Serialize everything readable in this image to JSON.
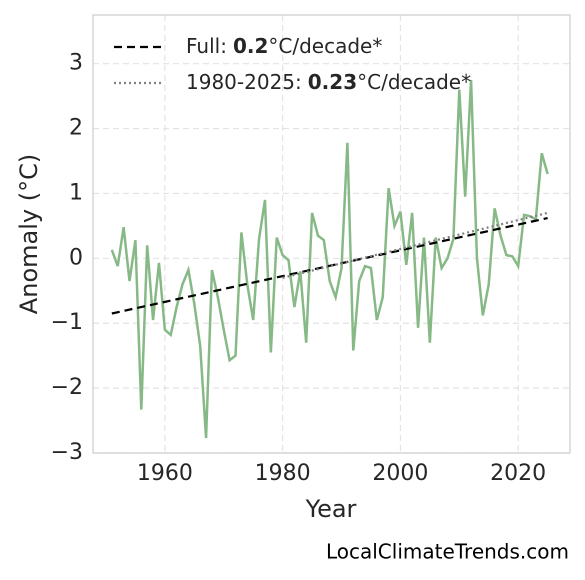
{
  "chart_data": {
    "type": "line",
    "x": [
      1951,
      1952,
      1953,
      1954,
      1955,
      1956,
      1957,
      1958,
      1959,
      1960,
      1961,
      1962,
      1963,
      1964,
      1965,
      1966,
      1967,
      1968,
      1969,
      1970,
      1971,
      1972,
      1973,
      1974,
      1975,
      1976,
      1977,
      1978,
      1979,
      1980,
      1981,
      1982,
      1983,
      1984,
      1985,
      1986,
      1987,
      1988,
      1989,
      1990,
      1991,
      1992,
      1993,
      1994,
      1995,
      1996,
      1997,
      1998,
      1999,
      2000,
      2001,
      2002,
      2003,
      2004,
      2005,
      2006,
      2007,
      2008,
      2009,
      2010,
      2011,
      2012,
      2013,
      2014,
      2015,
      2016,
      2017,
      2018,
      2019,
      2020,
      2021,
      2022,
      2023,
      2024,
      2025
    ],
    "series": [
      {
        "color": "#87b986",
        "values": [
          0.13,
          -0.12,
          0.48,
          -0.35,
          0.28,
          -2.33,
          0.2,
          -0.95,
          -0.07,
          -1.1,
          -1.18,
          -0.75,
          -0.4,
          -0.18,
          -0.7,
          -1.35,
          -2.77,
          -0.18,
          -0.6,
          -1.1,
          -1.57,
          -1.5,
          0.4,
          -0.4,
          -0.95,
          0.3,
          0.9,
          -1.45,
          0.32,
          0.05,
          -0.03,
          -0.75,
          -0.2,
          -1.3,
          0.7,
          0.35,
          0.28,
          -0.35,
          -0.6,
          -0.15,
          1.78,
          -1.42,
          -0.35,
          -0.12,
          -0.15,
          -0.95,
          -0.6,
          1.08,
          0.5,
          0.72,
          -0.1,
          0.7,
          -1.07,
          0.32,
          -1.3,
          0.32,
          -0.15,
          0.0,
          0.3,
          2.6,
          0.95,
          2.75,
          0.0,
          -0.88,
          -0.4,
          0.77,
          0.35,
          0.05,
          0.03,
          -0.12,
          0.67,
          0.65,
          0.6,
          1.62,
          1.3
        ]
      }
    ],
    "trends": [
      {
        "name": "Full:",
        "slope": 0.2,
        "unit": "°C/decade*",
        "color": "#000000",
        "dash": "dashed",
        "x": [
          1951,
          2025
        ],
        "values": [
          -0.85,
          0.62
        ]
      },
      {
        "name": "1980-2025:",
        "slope": 0.23,
        "unit": "°C/decade*",
        "color": "#808080",
        "dash": "dotted",
        "x": [
          1980,
          2025
        ],
        "values": [
          -0.3,
          0.7
        ]
      }
    ],
    "xlabel": "Year",
    "ylabel": "Anomaly (°C)",
    "xlim": [
      1947.8,
      2028.8
    ],
    "ylim": [
      -3,
      3.75
    ],
    "xticks": [
      1960,
      1980,
      2000,
      2020
    ],
    "yticks": [
      {
        "value": -3,
        "label": "−3"
      },
      {
        "value": -2,
        "label": "−2"
      },
      {
        "value": -1,
        "label": "−1"
      },
      0,
      1,
      2,
      3
    ],
    "grid": true,
    "legend": "upper left",
    "watermark": "LocalClimateTrends.com"
  }
}
